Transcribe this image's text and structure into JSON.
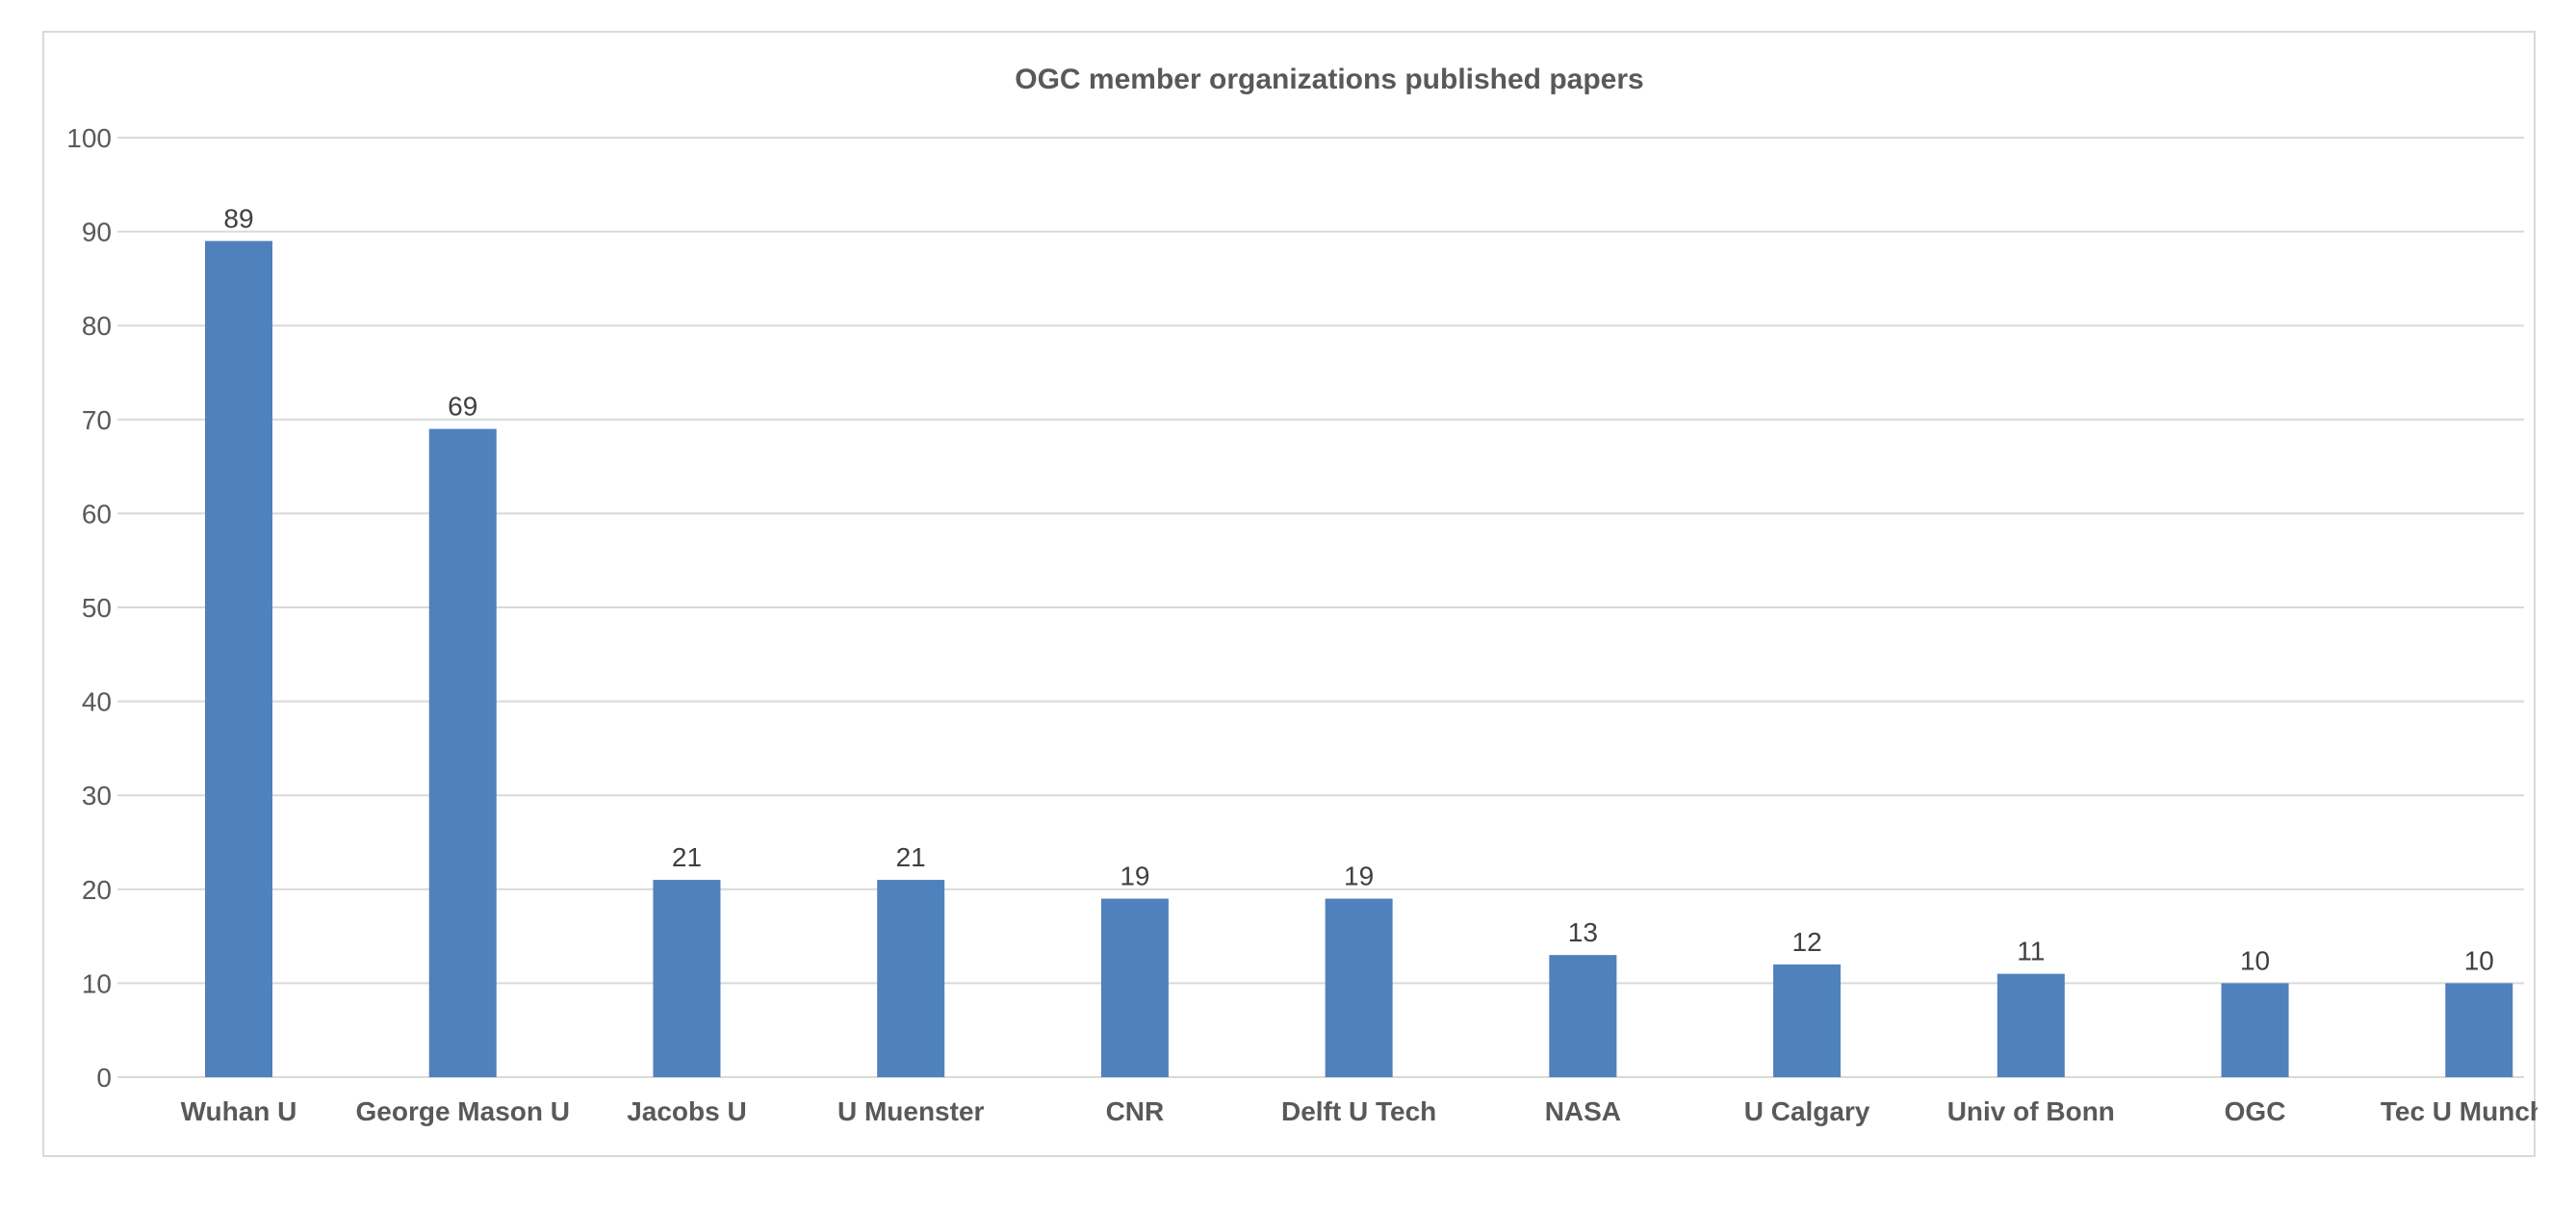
{
  "chart_data": {
    "type": "bar",
    "title": "OGC member organizations published papers",
    "xlabel": "",
    "ylabel": "",
    "categories": [
      "Wuhan U",
      "George Mason U",
      "Jacobs U",
      "U Muenster",
      "CNR",
      "Delft U Tech",
      "NASA",
      "U Calgary",
      "Univ of Bonn",
      "OGC",
      "Tec U Munchen"
    ],
    "values": [
      89,
      69,
      21,
      21,
      19,
      19,
      13,
      12,
      11,
      10,
      10
    ],
    "ylim": [
      0,
      100
    ],
    "yticks": [
      0,
      10,
      20,
      30,
      40,
      50,
      60,
      70,
      80,
      90,
      100
    ],
    "grid": true,
    "data_labels": true,
    "legend": "none",
    "bar_color": "#4f81bd",
    "grid_color": "#d9d9d9"
  }
}
